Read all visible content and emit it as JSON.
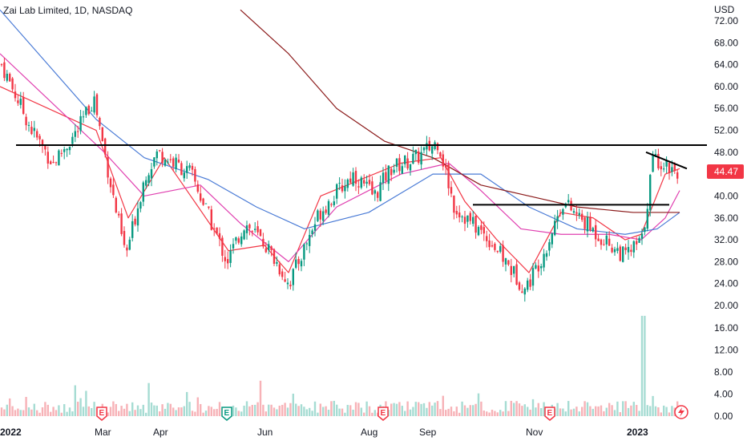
{
  "header": {
    "title": "Zai Lab Limited, 1D, NASDAQ"
  },
  "currency": "USD",
  "chart_data": {
    "type": "candlestick",
    "title": "Zai Lab Limited, 1D, NASDAQ",
    "price_axis": {
      "unit": "USD",
      "ticks": [
        "72.00",
        "68.00",
        "64.00",
        "60.00",
        "56.00",
        "52.00",
        "48.00",
        "44.00",
        "40.00",
        "36.00",
        "32.00",
        "28.00",
        "24.00",
        "20.00"
      ],
      "range": [
        18.6,
        74.4
      ]
    },
    "volume_axis": {
      "ticks": [
        "16.00",
        "12.00",
        "8.00",
        "4.00",
        "0.00"
      ],
      "range": [
        0,
        18.5
      ]
    },
    "time_axis": {
      "labels": [
        "2022",
        "Mar",
        "Apr",
        "Jun",
        "Aug",
        "Sep",
        "Nov",
        "2023"
      ],
      "bold_labels": [
        "2022",
        "2023"
      ]
    },
    "last_price": "44.47",
    "earnings_markers": [
      "E",
      "E",
      "E",
      "E",
      "E"
    ],
    "ohlc_keypoints": [
      {
        "date": "2022-01-03",
        "close": 64.0
      },
      {
        "date": "2022-01-20",
        "close": 52.0
      },
      {
        "date": "2022-02-01",
        "close": 46.0
      },
      {
        "date": "2022-02-15",
        "close": 52.0
      },
      {
        "date": "2022-02-24",
        "close": 58.0
      },
      {
        "date": "2022-03-08",
        "close": 38.0
      },
      {
        "date": "2022-03-14",
        "close": 29.0
      },
      {
        "date": "2022-03-25",
        "close": 44.0
      },
      {
        "date": "2022-04-01",
        "close": 48.0
      },
      {
        "date": "2022-04-20",
        "close": 44.0
      },
      {
        "date": "2022-05-10",
        "close": 28.0
      },
      {
        "date": "2022-05-20",
        "close": 35.0
      },
      {
        "date": "2022-06-01",
        "close": 31.0
      },
      {
        "date": "2022-06-14",
        "close": 24.0
      },
      {
        "date": "2022-07-01",
        "close": 37.0
      },
      {
        "date": "2022-07-20",
        "close": 44.0
      },
      {
        "date": "2022-08-01",
        "close": 40.0
      },
      {
        "date": "2022-08-10",
        "close": 45.0
      },
      {
        "date": "2022-08-25",
        "close": 47.0
      },
      {
        "date": "2022-09-06",
        "close": 50.0
      },
      {
        "date": "2022-09-15",
        "close": 38.0
      },
      {
        "date": "2022-10-05",
        "close": 32.0
      },
      {
        "date": "2022-10-25",
        "close": 23.0
      },
      {
        "date": "2022-11-05",
        "close": 30.0
      },
      {
        "date": "2022-11-15",
        "close": 39.0
      },
      {
        "date": "2022-12-01",
        "close": 34.0
      },
      {
        "date": "2022-12-20",
        "close": 29.0
      },
      {
        "date": "2022-12-30",
        "close": 32.0
      },
      {
        "date": "2023-01-05",
        "close": 47.0
      },
      {
        "date": "2023-01-20",
        "close": 44.47
      }
    ],
    "moving_averages": [
      {
        "color": "#f23645",
        "points": [
          [
            0,
            60
          ],
          [
            120,
            52
          ],
          [
            160,
            36
          ],
          [
            205,
            47
          ],
          [
            285,
            30
          ],
          [
            330,
            31
          ],
          [
            360,
            26
          ],
          [
            400,
            40
          ],
          [
            450,
            43
          ],
          [
            500,
            46
          ],
          [
            550,
            47
          ],
          [
            580,
            39
          ],
          [
            620,
            32
          ],
          [
            660,
            26
          ],
          [
            700,
            37
          ],
          [
            740,
            36
          ],
          [
            780,
            32
          ],
          [
            800,
            33
          ],
          [
            830,
            44
          ],
          [
            848,
            45
          ]
        ]
      },
      {
        "color": "#e040b0",
        "points": [
          [
            0,
            66
          ],
          [
            130,
            48
          ],
          [
            180,
            40
          ],
          [
            250,
            42
          ],
          [
            300,
            35
          ],
          [
            360,
            28
          ],
          [
            420,
            38
          ],
          [
            500,
            44
          ],
          [
            560,
            46
          ],
          [
            600,
            41
          ],
          [
            650,
            34
          ],
          [
            700,
            33
          ],
          [
            760,
            33
          ],
          [
            800,
            32
          ],
          [
            830,
            36
          ],
          [
            848,
            41
          ]
        ]
      },
      {
        "color": "#4a7bd6",
        "points": [
          [
            0,
            74
          ],
          [
            60,
            64
          ],
          [
            120,
            54
          ],
          [
            180,
            47
          ],
          [
            260,
            43
          ],
          [
            320,
            38
          ],
          [
            380,
            34
          ],
          [
            460,
            37
          ],
          [
            540,
            44
          ],
          [
            600,
            44
          ],
          [
            660,
            38
          ],
          [
            720,
            34
          ],
          [
            780,
            33
          ],
          [
            820,
            34
          ],
          [
            848,
            37
          ]
        ]
      },
      {
        "color": "#8b1a1a",
        "points": [
          [
            300,
            74
          ],
          [
            360,
            66
          ],
          [
            420,
            56
          ],
          [
            480,
            50
          ],
          [
            540,
            47
          ],
          [
            600,
            42
          ],
          [
            660,
            40
          ],
          [
            720,
            38
          ],
          [
            790,
            37
          ],
          [
            848,
            37
          ]
        ]
      }
    ],
    "drawings": [
      {
        "type": "hline",
        "price": 49.3,
        "from_x": 20,
        "to_x": 882
      },
      {
        "type": "hline",
        "price": 38.4,
        "from_x": 590,
        "to_x": 835
      },
      {
        "type": "trendline",
        "from": [
          806,
          48.0
        ],
        "to": [
          857,
          45.0
        ]
      }
    ],
    "colors": {
      "up": "#089981",
      "down": "#f23645",
      "up_volume": "#a6dcd3",
      "down_volume": "#f7b2b7",
      "last_price_bg": "#f23645"
    }
  }
}
